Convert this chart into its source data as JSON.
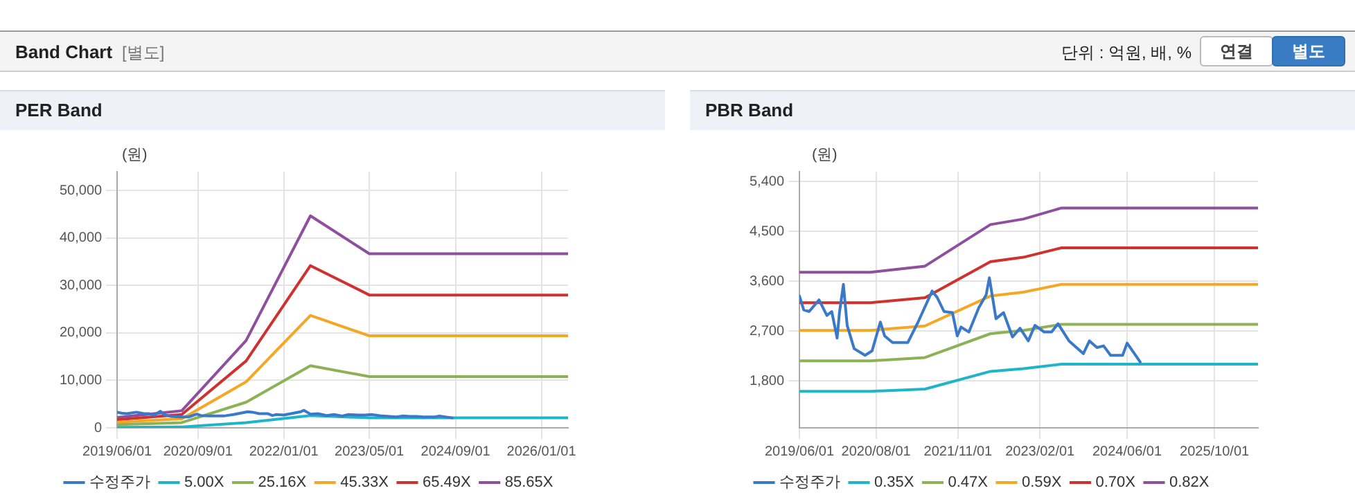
{
  "chart_data": [
    {
      "type": "other",
      "title": "Band Chart",
      "subtitle": "[별도]",
      "annotations": [
        "단위 : 억원, 배, %",
        "연결",
        "별도"
      ]
    },
    {
      "type": "line",
      "title": "PER Band",
      "ylabel": "(원)",
      "legend": "bottom",
      "grid": true,
      "marker": "none",
      "line_style": "solid",
      "xlim": [
        "2019-06-01",
        "2026-06-01"
      ],
      "xticks": [
        {
          "value": "2019-06-01",
          "label": "2019/06/01"
        },
        {
          "value": "2020-09-01",
          "label": "2020/09/01"
        },
        {
          "value": "2022-01-01",
          "label": "2022/01/01"
        },
        {
          "value": "2023-05-01",
          "label": "2023/05/01"
        },
        {
          "value": "2024-09-01",
          "label": "2024/09/01"
        },
        {
          "value": "2026-01-01",
          "label": "2026/01/01"
        }
      ],
      "ylim": [
        0,
        54000
      ],
      "yticks": [
        {
          "value": 0,
          "label": "0"
        },
        {
          "value": 10000,
          "label": "10,000"
        },
        {
          "value": 20000,
          "label": "20,000"
        },
        {
          "value": 30000,
          "label": "30,000"
        },
        {
          "value": 40000,
          "label": "40,000"
        },
        {
          "value": 50000,
          "label": "50,000"
        }
      ],
      "series": [
        {
          "name": "수정주가",
          "color": "#3a78c9",
          "x": [
            "2019-06-01",
            "2019-06-25",
            "2019-07-25",
            "2019-09-18",
            "2019-11-01",
            "2019-11-28",
            "2019-12-28",
            "2020-01-10",
            "2020-02-01",
            "2020-02-22",
            "2020-04-01",
            "2020-06-01",
            "2020-07-10",
            "2020-08-25",
            "2020-09-18",
            "2020-11-01",
            "2021-01-25",
            "2021-03-22",
            "2021-06-10",
            "2021-07-07",
            "2021-08-15",
            "2021-10-01",
            "2021-10-28",
            "2021-11-18",
            "2022-01-01",
            "2022-02-25",
            "2022-04-07",
            "2022-04-25",
            "2022-06-01",
            "2022-07-13",
            "2022-09-01",
            "2022-10-13",
            "2022-11-28",
            "2023-01-04",
            "2023-02-25",
            "2023-04-07",
            "2023-05-13",
            "2023-07-13",
            "2023-10-01",
            "2023-11-04",
            "2023-12-16",
            "2024-01-22",
            "2024-03-01",
            "2024-05-07",
            "2024-06-01",
            "2024-08-13"
          ],
          "values": [
            3300,
            3100,
            3000,
            3300,
            3000,
            3000,
            2600,
            3000,
            3500,
            2800,
            2400,
            2300,
            2300,
            2900,
            2600,
            2500,
            2500,
            2800,
            3400,
            3300,
            3000,
            3000,
            2600,
            2800,
            2700,
            3100,
            3400,
            3700,
            2900,
            3000,
            2600,
            2800,
            2500,
            2800,
            2700,
            2700,
            2800,
            2500,
            2300,
            2500,
            2400,
            2400,
            2300,
            2300,
            2500,
            2100
          ]
        },
        {
          "name": "5.00X",
          "color": "#1fb5c9",
          "x": [
            "2019-06-01",
            "2020-06-01",
            "2021-06-01",
            "2022-06-01",
            "2023-05-01",
            "2026-06-01"
          ],
          "values": [
            100,
            200,
            1100,
            2600,
            2100,
            2100
          ]
        },
        {
          "name": "25.16X",
          "color": "#8db255",
          "x": [
            "2019-06-01",
            "2020-06-01",
            "2021-06-01",
            "2022-06-01",
            "2023-05-01",
            "2026-06-01"
          ],
          "values": [
            700,
            1100,
            5400,
            13100,
            10800,
            10800
          ]
        },
        {
          "name": "45.33X",
          "color": "#f5a623",
          "x": [
            "2019-06-01",
            "2020-06-01",
            "2021-06-01",
            "2022-06-01",
            "2023-05-01",
            "2026-06-01"
          ],
          "values": [
            1200,
            1900,
            9700,
            23700,
            19400,
            19400
          ]
        },
        {
          "name": "65.49X",
          "color": "#d0312d",
          "x": [
            "2019-06-01",
            "2020-06-01",
            "2021-06-01",
            "2022-06-01",
            "2023-05-01",
            "2026-06-01"
          ],
          "values": [
            1700,
            2800,
            14100,
            34200,
            28000,
            28000
          ]
        },
        {
          "name": "85.65X",
          "color": "#8e4f9e",
          "x": [
            "2019-06-01",
            "2020-06-01",
            "2021-06-01",
            "2022-06-01",
            "2023-05-01",
            "2026-06-01"
          ],
          "values": [
            2200,
            3600,
            18400,
            44700,
            36700,
            36700
          ]
        }
      ]
    },
    {
      "type": "line",
      "title": "PBR Band",
      "ylabel": "(원)",
      "legend": "bottom",
      "grid": true,
      "marker": "none",
      "line_style": "solid",
      "xlim": [
        "2019-06-01",
        "2026-06-01"
      ],
      "xticks": [
        {
          "value": "2019-06-01",
          "label": "2019/06/01"
        },
        {
          "value": "2020-08-01",
          "label": "2020/08/01"
        },
        {
          "value": "2021-11-01",
          "label": "2021/11/01"
        },
        {
          "value": "2023-02-01",
          "label": "2023/02/01"
        },
        {
          "value": "2024-06-01",
          "label": "2024/06/01"
        },
        {
          "value": "2025-10-01",
          "label": "2025/10/01"
        }
      ],
      "ylim": [
        950,
        5575
      ],
      "yticks": [
        {
          "value": 1800,
          "label": "1,800"
        },
        {
          "value": 2700,
          "label": "2,700"
        },
        {
          "value": 3600,
          "label": "3,600"
        },
        {
          "value": 4500,
          "label": "4,500"
        },
        {
          "value": 5400,
          "label": "5,400"
        }
      ],
      "series": [
        {
          "name": "수정주가",
          "color": "#3a78c9",
          "x": [
            "2019-06-01",
            "2019-06-25",
            "2019-07-25",
            "2019-09-18",
            "2019-11-01",
            "2019-11-28",
            "2019-12-28",
            "2020-01-10",
            "2020-02-01",
            "2020-02-22",
            "2020-04-01",
            "2020-06-01",
            "2020-07-10",
            "2020-08-25",
            "2020-09-18",
            "2020-11-01",
            "2021-01-25",
            "2021-03-22",
            "2021-06-10",
            "2021-07-07",
            "2021-08-15",
            "2021-10-01",
            "2021-10-28",
            "2021-11-18",
            "2022-01-01",
            "2022-02-25",
            "2022-04-07",
            "2022-04-25",
            "2022-06-01",
            "2022-07-13",
            "2022-09-01",
            "2022-10-13",
            "2022-11-28",
            "2023-01-04",
            "2023-02-25",
            "2023-04-07",
            "2023-05-13",
            "2023-07-13",
            "2023-10-01",
            "2023-11-04",
            "2023-12-16",
            "2024-01-22",
            "2024-03-01",
            "2024-05-07",
            "2024-06-01",
            "2024-08-13"
          ],
          "values": [
            3330,
            3080,
            3050,
            3260,
            2980,
            3050,
            2570,
            3030,
            3540,
            2800,
            2380,
            2260,
            2340,
            2860,
            2610,
            2490,
            2490,
            2850,
            3420,
            3310,
            3050,
            3030,
            2610,
            2770,
            2680,
            3120,
            3350,
            3660,
            2920,
            3030,
            2590,
            2750,
            2520,
            2800,
            2680,
            2680,
            2830,
            2520,
            2290,
            2520,
            2400,
            2430,
            2260,
            2260,
            2480,
            2140
          ]
        },
        {
          "name": "0.35X",
          "color": "#1fb5c9",
          "x": [
            "2019-06-01",
            "2020-07-01",
            "2021-05-01",
            "2022-05-01",
            "2022-11-01",
            "2023-06-01",
            "2026-06-01"
          ],
          "values": [
            1610,
            1610,
            1650,
            1970,
            2020,
            2100,
            2100
          ]
        },
        {
          "name": "0.47X",
          "color": "#8db255",
          "x": [
            "2019-06-01",
            "2020-07-01",
            "2021-05-01",
            "2022-05-01",
            "2022-11-01",
            "2023-06-01",
            "2026-06-01"
          ],
          "values": [
            2160,
            2160,
            2220,
            2650,
            2710,
            2820,
            2820
          ]
        },
        {
          "name": "0.59X",
          "color": "#f5a623",
          "x": [
            "2019-06-01",
            "2020-07-01",
            "2021-05-01",
            "2022-05-01",
            "2022-11-01",
            "2023-06-01",
            "2026-06-01"
          ],
          "values": [
            2710,
            2710,
            2790,
            3330,
            3400,
            3540,
            3540
          ]
        },
        {
          "name": "0.70X",
          "color": "#d0312d",
          "x": [
            "2019-06-01",
            "2020-07-01",
            "2021-05-01",
            "2022-05-01",
            "2022-11-01",
            "2023-06-01",
            "2026-06-01"
          ],
          "values": [
            3210,
            3210,
            3300,
            3950,
            4030,
            4200,
            4200
          ]
        },
        {
          "name": "0.82X",
          "color": "#8e4f9e",
          "x": [
            "2019-06-01",
            "2020-07-01",
            "2021-05-01",
            "2022-05-01",
            "2022-11-01",
            "2023-06-01",
            "2026-06-01"
          ],
          "values": [
            3760,
            3760,
            3870,
            4620,
            4720,
            4920,
            4920
          ]
        }
      ]
    }
  ]
}
